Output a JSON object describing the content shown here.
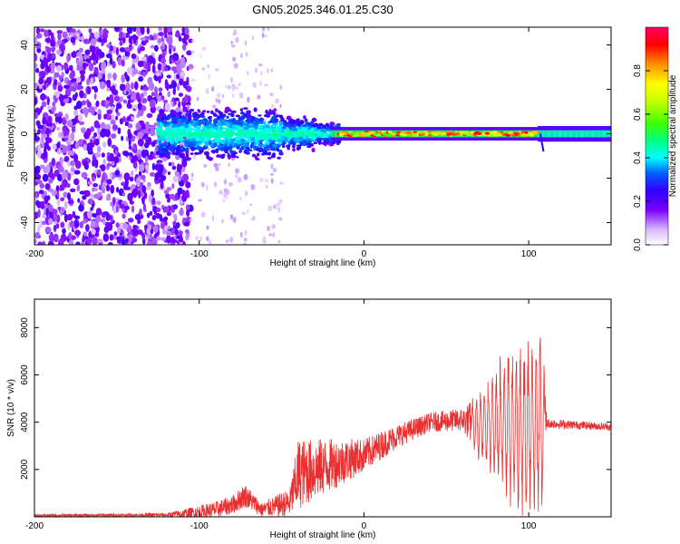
{
  "title": "GN05.2025.346.01.25.C30",
  "chart_data": [
    {
      "type": "heatmap",
      "xlabel": "Height of straight line (km)",
      "ylabel": "Frequency (Hz)",
      "xlim": [
        -200,
        150
      ],
      "ylim": [
        -50,
        48
      ],
      "xticks": [
        -200,
        -100,
        0,
        100
      ],
      "xtick_labels": [
        "-200",
        "-100",
        "0",
        "100"
      ],
      "yticks": [
        -40,
        -20,
        0,
        20,
        40
      ],
      "ytick_labels": [
        "-40",
        "-20",
        "0",
        "20",
        "40"
      ],
      "colorbar": {
        "label": "Normalized spectral amplitude",
        "range": [
          0,
          1
        ],
        "ticks": [
          0,
          0.2,
          0.4,
          0.6,
          0.8
        ],
        "tick_labels": [
          "0.0",
          "0.2",
          "0.4",
          "0.6",
          "0.8"
        ]
      },
      "regions": [
        {
          "x": [
            -200,
            -105
          ],
          "description_level": "scattered noise 0.1-0.35",
          "freq_spread": [
            -50,
            48
          ]
        },
        {
          "x": [
            -105,
            -55
          ],
          "level": 0.05,
          "freq_spread": [
            -50,
            48
          ]
        },
        {
          "x": [
            -120,
            -50
          ],
          "level": 0.35,
          "freq_spread": [
            -12,
            12
          ]
        },
        {
          "x": [
            -50,
            -15
          ],
          "level": 0.45,
          "freq_spread": [
            -6,
            6
          ]
        },
        {
          "x": [
            -15,
            105
          ],
          "level": 0.85,
          "freq_spread": [
            -3,
            3
          ]
        },
        {
          "x": [
            105,
            150
          ],
          "level": 0.5,
          "freq_spread": [
            -3,
            3
          ]
        }
      ]
    },
    {
      "type": "line",
      "series": [
        {
          "name": "SNR",
          "color": "#e83030"
        }
      ],
      "xlabel": "Height of straight line (km)",
      "ylabel": "SNR (10 * v/v)",
      "xlim": [
        -200,
        150
      ],
      "ylim": [
        0,
        9200
      ],
      "xticks": [
        -200,
        -100,
        0,
        100
      ],
      "xtick_labels": [
        "-200",
        "-100",
        "0",
        "100"
      ],
      "yticks": [
        2000,
        4000,
        6000,
        8000
      ],
      "ytick_labels": [
        "2000",
        "4000",
        "6000",
        "8000"
      ],
      "envelope": [
        {
          "x": -200,
          "y": 50,
          "amp": 60
        },
        {
          "x": -120,
          "y": 80,
          "amp": 80
        },
        {
          "x": -105,
          "y": 150,
          "amp": 250
        },
        {
          "x": -90,
          "y": 300,
          "amp": 350
        },
        {
          "x": -80,
          "y": 500,
          "amp": 400
        },
        {
          "x": -72,
          "y": 900,
          "amp": 500
        },
        {
          "x": -62,
          "y": 300,
          "amp": 300
        },
        {
          "x": -45,
          "y": 600,
          "amp": 600
        },
        {
          "x": -40,
          "y": 1800,
          "amp": 1500
        },
        {
          "x": -20,
          "y": 2200,
          "amp": 1100
        },
        {
          "x": 0,
          "y": 2600,
          "amp": 700
        },
        {
          "x": 20,
          "y": 3400,
          "amp": 500
        },
        {
          "x": 40,
          "y": 4000,
          "amp": 400
        },
        {
          "x": 60,
          "y": 4100,
          "amp": 500
        },
        {
          "x": 68,
          "y": 3900,
          "amp": 1200
        },
        {
          "x": 80,
          "y": 3900,
          "amp": 2400
        },
        {
          "x": 92,
          "y": 3800,
          "amp": 3200
        },
        {
          "x": 101,
          "y": 3700,
          "amp": 3400
        },
        {
          "x": 108,
          "y": 4000,
          "amp": 3800
        },
        {
          "x": 111,
          "y": 3950,
          "amp": 200
        },
        {
          "x": 150,
          "y": 3800,
          "amp": 150
        }
      ]
    }
  ]
}
